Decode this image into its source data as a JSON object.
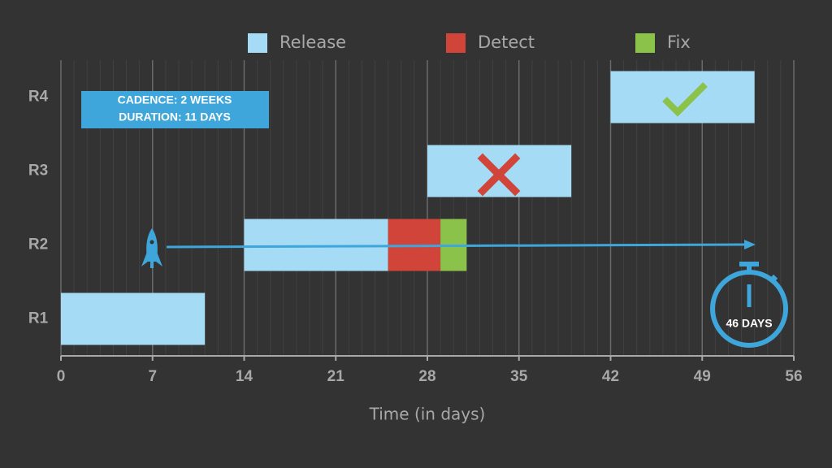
{
  "chart_data": {
    "type": "gantt",
    "categories": [
      "R1",
      "R2",
      "R3",
      "R4"
    ],
    "series": [
      {
        "name": "Release",
        "color": "#a6dbf6",
        "values": [
          [
            0,
            11
          ],
          [
            14,
            25
          ],
          [
            28,
            39
          ],
          [
            42,
            53
          ]
        ]
      },
      {
        "name": "Detect",
        "color": "#d1443a",
        "values": [
          null,
          [
            25,
            29
          ],
          null,
          null
        ]
      },
      {
        "name": "Fix",
        "color": "#8bc34a",
        "values": [
          null,
          [
            29,
            31
          ],
          null,
          null
        ]
      }
    ],
    "xlabel": "Time (in days)",
    "xlim": [
      0,
      56
    ],
    "xticks": [
      0,
      7,
      14,
      21,
      28,
      35,
      42,
      49,
      56
    ],
    "grid": true,
    "legend": "top",
    "annotations": [
      "CADENCE: 2 WEEKS",
      "DURATION: 11 DAYS",
      "46 DAYS"
    ]
  }
}
